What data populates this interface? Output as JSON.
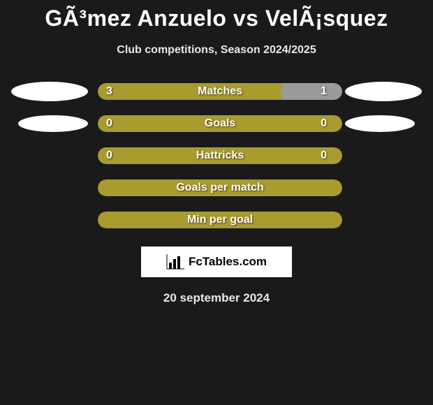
{
  "header": {
    "title": "GÃ³mez Anzuelo vs VelÃ¡squez",
    "subtitle": "Club competitions, Season 2024/2025"
  },
  "colors": {
    "olive": "#a89b2f",
    "gray": "#9a9a9a",
    "white": "#ffffff",
    "bg": "#1a1a1a"
  },
  "rows": [
    {
      "label": "Matches",
      "left_val": "3",
      "right_val": "1",
      "left_pct": 75,
      "right_pct": 25,
      "left_color": "#a89b2f",
      "right_color": "#9a9a9a",
      "show_ellipses": true,
      "ellipse_size": "big"
    },
    {
      "label": "Goals",
      "left_val": "0",
      "right_val": "0",
      "left_pct": 100,
      "right_pct": 0,
      "left_color": "#a89b2f",
      "right_color": "#a89b2f",
      "show_ellipses": true,
      "ellipse_size": "small",
      "full": true
    },
    {
      "label": "Hattricks",
      "left_val": "0",
      "right_val": "0",
      "left_pct": 100,
      "right_pct": 0,
      "left_color": "#a89b2f",
      "right_color": "#a89b2f",
      "show_ellipses": false,
      "full": true
    },
    {
      "label": "Goals per match",
      "left_val": "",
      "right_val": "",
      "left_pct": 100,
      "right_pct": 0,
      "left_color": "#a89b2f",
      "right_color": "#a89b2f",
      "show_ellipses": false,
      "full": true
    },
    {
      "label": "Min per goal",
      "left_val": "",
      "right_val": "",
      "left_pct": 100,
      "right_pct": 0,
      "left_color": "#a89b2f",
      "right_color": "#a89b2f",
      "show_ellipses": false,
      "full": true
    }
  ],
  "footer": {
    "brand": "FcTables.com",
    "date": "20 september 2024"
  }
}
